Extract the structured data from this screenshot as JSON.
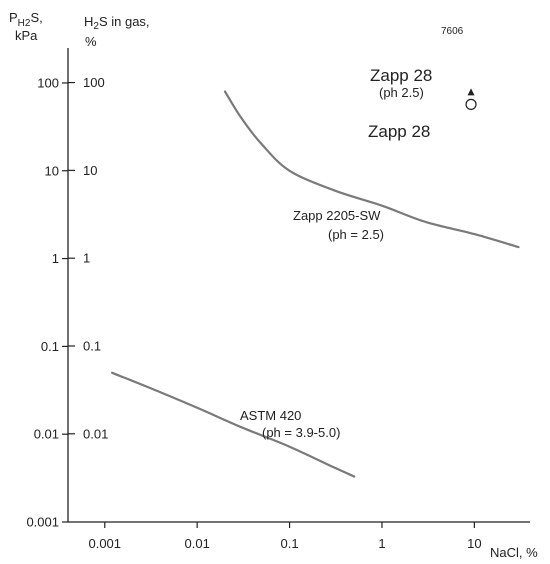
{
  "chart_data": {
    "type": "line",
    "figure_id": "7606",
    "axis_labels": {
      "y_left_line1": "PH2S,",
      "y_left_line2": "kPa",
      "y_inner_line1": "H2S in gas,",
      "y_inner_line2": "%",
      "x": "NaCl, %"
    },
    "x_scale": "log",
    "y_scale": "log",
    "xlim": [
      0.0004,
      40
    ],
    "ylim": [
      0.001,
      250
    ],
    "x_ticks": [
      {
        "value": 0.001,
        "label": "0.001"
      },
      {
        "value": 0.01,
        "label": "0.01"
      },
      {
        "value": 0.1,
        "label": "0.1"
      },
      {
        "value": 1,
        "label": "1"
      },
      {
        "value": 10,
        "label": "10"
      }
    ],
    "y_ticks_kpa": [
      {
        "value": 0.001,
        "label": "0.001"
      },
      {
        "value": 0.01,
        "label": "0.01"
      },
      {
        "value": 0.1,
        "label": "0.1"
      },
      {
        "value": 1,
        "label": "1"
      },
      {
        "value": 10,
        "label": "10"
      },
      {
        "value": 100,
        "label": "100"
      }
    ],
    "y_ticks_percent": [
      {
        "value": 0.0101,
        "label": "0.01"
      },
      {
        "value": 0.101,
        "label": "0.1"
      },
      {
        "value": 1.01,
        "label": "1"
      },
      {
        "value": 10.1,
        "label": "10"
      },
      {
        "value": 101,
        "label": "100"
      }
    ],
    "series": [
      {
        "name": "Zapp 2205-SW",
        "note": "(ph = 2.5)",
        "points": [
          [
            0.02,
            80
          ],
          [
            0.03,
            40
          ],
          [
            0.05,
            20
          ],
          [
            0.1,
            10
          ],
          [
            0.3,
            6
          ],
          [
            1,
            4
          ],
          [
            3,
            2.6
          ],
          [
            10,
            1.9
          ],
          [
            30,
            1.35
          ]
        ]
      },
      {
        "name": "ASTM 420",
        "note": "(ph = 3.9-5.0)",
        "points": [
          [
            0.0012,
            0.05
          ],
          [
            0.003,
            0.034
          ],
          [
            0.01,
            0.02
          ],
          [
            0.03,
            0.012
          ],
          [
            0.1,
            0.0072
          ],
          [
            0.3,
            0.0042
          ],
          [
            0.5,
            0.0033
          ]
        ]
      }
    ],
    "markers": [
      {
        "name": "Zapp 28",
        "note": "(ph 2.5)",
        "symbol": "filled-triangle",
        "x": 9.2,
        "y": 78
      },
      {
        "name": "Zapp 28",
        "note": "",
        "symbol": "open-circle",
        "x": 9.2,
        "y": 57
      }
    ]
  }
}
